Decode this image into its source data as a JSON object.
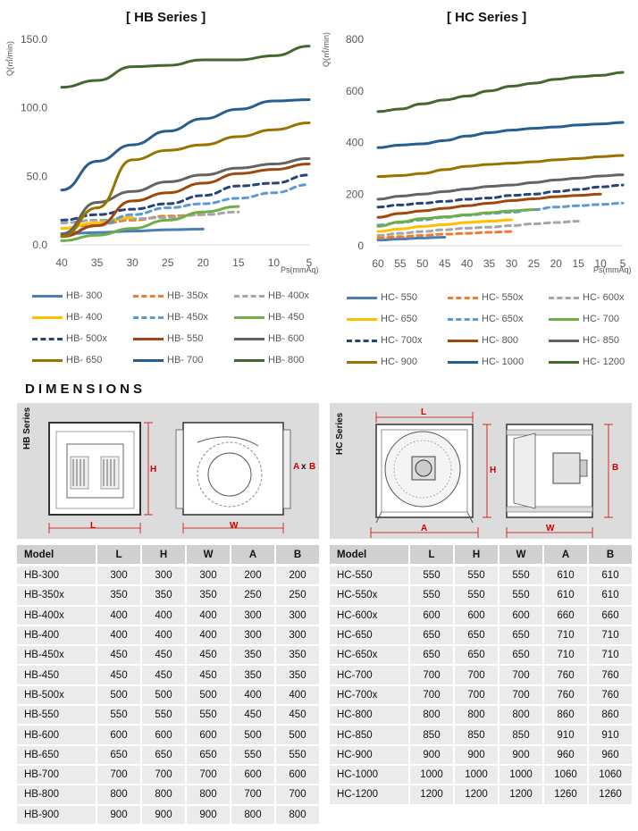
{
  "hb_chart": {
    "title": "[ HB Series ]",
    "ylabel": "Q(㎥/min)",
    "xlabel": "Ps(mmAq)",
    "y_ticks": [
      "0.0",
      "50.0",
      "100.0",
      "150.0"
    ],
    "x_ticks": [
      "40",
      "35",
      "30",
      "25",
      "20",
      "15",
      "10",
      "5"
    ]
  },
  "hc_chart": {
    "title": "[ HC Series ]",
    "ylabel": "Q(㎥/min)",
    "xlabel": "Ps(mmAq)",
    "y_ticks": [
      "0",
      "200",
      "400",
      "600",
      "800"
    ],
    "x_ticks": [
      "60",
      "55",
      "50",
      "45",
      "40",
      "35",
      "30",
      "25",
      "20",
      "15",
      "10",
      "5"
    ]
  },
  "chart_data": [
    {
      "type": "line",
      "title": "[ HB Series ]",
      "xlabel": "Ps(mmAq)",
      "ylabel": "Q(㎥/min)",
      "xlim": [
        40,
        5
      ],
      "ylim": [
        0,
        150
      ],
      "grid": false,
      "legend": "bottom",
      "series": [
        {
          "name": "HB- 300",
          "color": "#4a7ebb",
          "dash": false,
          "x": [
            20,
            25,
            30,
            35,
            40
          ],
          "y": [
            11.5,
            11,
            10,
            9,
            8
          ]
        },
        {
          "name": "HB- 350x",
          "color": "#ed7d31",
          "dash": true,
          "x": [
            20,
            25,
            30,
            35,
            40
          ],
          "y": [
            22,
            21,
            18,
            15,
            12
          ]
        },
        {
          "name": "HB- 400x",
          "color": "#a5a5a5",
          "dash": true,
          "x": [
            15,
            20,
            25,
            30,
            35,
            40
          ],
          "y": [
            24,
            22,
            20,
            19,
            18,
            16
          ]
        },
        {
          "name": "HB- 400",
          "color": "#ffc000",
          "dash": false,
          "x": [
            30,
            35,
            40
          ],
          "y": [
            20,
            16,
            12
          ]
        },
        {
          "name": "HB- 450x",
          "color": "#5b9bd5",
          "dash": true,
          "x": [
            5,
            10,
            15,
            20,
            25,
            30,
            35,
            40
          ],
          "y": [
            44,
            38,
            34,
            30,
            27,
            22,
            14,
            7
          ]
        },
        {
          "name": "HB- 450",
          "color": "#70ad47",
          "dash": false,
          "x": [
            15,
            20,
            25,
            30,
            35,
            40
          ],
          "y": [
            28,
            24,
            18,
            12,
            7,
            3
          ]
        },
        {
          "name": "HB- 500x",
          "color": "#264478",
          "dash": true,
          "x": [
            5,
            10,
            15,
            20,
            25,
            30,
            35,
            40
          ],
          "y": [
            51,
            45,
            43,
            36,
            30,
            26,
            22,
            18
          ]
        },
        {
          "name": "HB- 550",
          "color": "#9e480e",
          "dash": false,
          "x": [
            5,
            10,
            15,
            20,
            25,
            30,
            35,
            40
          ],
          "y": [
            59,
            55,
            52,
            45,
            38,
            32,
            14,
            6
          ]
        },
        {
          "name": "HB- 600",
          "color": "#636363",
          "dash": false,
          "x": [
            5,
            10,
            15,
            20,
            25,
            30,
            35,
            40
          ],
          "y": [
            63,
            59,
            56,
            51,
            46,
            39,
            31,
            8
          ]
        },
        {
          "name": "HB- 650",
          "color": "#997300",
          "dash": false,
          "x": [
            5,
            10,
            15,
            20,
            25,
            30,
            35,
            40
          ],
          "y": [
            89,
            84,
            79,
            73,
            69,
            62,
            27,
            6
          ]
        },
        {
          "name": "HB- 700",
          "color": "#255e91",
          "dash": false,
          "x": [
            5,
            10,
            15,
            20,
            25,
            30,
            35,
            40
          ],
          "y": [
            106,
            105,
            99,
            92,
            83,
            73,
            61,
            40
          ]
        },
        {
          "name": "HB- 800",
          "color": "#43682b",
          "dash": false,
          "x": [
            5,
            10,
            15,
            20,
            25,
            30,
            35,
            40
          ],
          "y": [
            145,
            138,
            135,
            135,
            131,
            130,
            120,
            115
          ]
        }
      ]
    },
    {
      "type": "line",
      "title": "[ HC Series ]",
      "xlabel": "Ps(mmAq)",
      "ylabel": "Q(㎥/min)",
      "xlim": [
        60,
        5
      ],
      "ylim": [
        0,
        800
      ],
      "grid": false,
      "legend": "bottom",
      "series": [
        {
          "name": "HC- 550",
          "color": "#4a7ebb",
          "dash": false,
          "x": [
            45,
            50,
            55,
            60
          ],
          "y": [
            33,
            30,
            26,
            22
          ]
        },
        {
          "name": "HC- 550x",
          "color": "#ed7d31",
          "dash": true,
          "x": [
            30,
            35,
            40,
            45,
            50,
            55,
            60
          ],
          "y": [
            55,
            52,
            48,
            45,
            40,
            35,
            30
          ]
        },
        {
          "name": "HC- 600x",
          "color": "#a5a5a5",
          "dash": true,
          "x": [
            15,
            20,
            25,
            30,
            35,
            40,
            45,
            50,
            55,
            60
          ],
          "y": [
            95,
            90,
            85,
            78,
            72,
            68,
            62,
            55,
            48,
            40
          ]
        },
        {
          "name": "HC- 650",
          "color": "#ffc000",
          "dash": false,
          "x": [
            30,
            35,
            40,
            45,
            50,
            55,
            60
          ],
          "y": [
            100,
            95,
            90,
            82,
            75,
            65,
            55
          ]
        },
        {
          "name": "HC- 650x",
          "color": "#5b9bd5",
          "dash": true,
          "x": [
            5,
            10,
            15,
            20,
            25,
            30,
            35,
            40,
            45,
            50,
            55,
            60
          ],
          "y": [
            165,
            160,
            155,
            150,
            140,
            130,
            125,
            118,
            110,
            100,
            90,
            80
          ]
        },
        {
          "name": "HC- 700",
          "color": "#70ad47",
          "dash": false,
          "x": [
            25,
            30,
            35,
            40,
            45,
            50,
            55,
            60
          ],
          "y": [
            140,
            135,
            128,
            120,
            112,
            105,
            92,
            75
          ]
        },
        {
          "name": "HC- 700x",
          "color": "#264478",
          "dash": true,
          "x": [
            5,
            10,
            15,
            20,
            25,
            30,
            35,
            40,
            45,
            50,
            55,
            60
          ],
          "y": [
            235,
            228,
            218,
            210,
            200,
            195,
            185,
            180,
            172,
            165,
            158,
            150
          ]
        },
        {
          "name": "HC- 800",
          "color": "#9e480e",
          "dash": false,
          "x": [
            10,
            15,
            20,
            25,
            30,
            35,
            40,
            45,
            50,
            55,
            60
          ],
          "y": [
            200,
            195,
            190,
            182,
            175,
            165,
            155,
            145,
            135,
            125,
            110
          ]
        },
        {
          "name": "HC- 850",
          "color": "#636363",
          "dash": false,
          "x": [
            5,
            10,
            15,
            20,
            25,
            30,
            35,
            40,
            45,
            50,
            55,
            60
          ],
          "y": [
            275,
            270,
            262,
            255,
            245,
            235,
            230,
            220,
            210,
            200,
            192,
            180
          ]
        },
        {
          "name": "HC- 900",
          "color": "#997300",
          "dash": false,
          "x": [
            5,
            10,
            15,
            20,
            25,
            30,
            35,
            40,
            45,
            50,
            55,
            60
          ],
          "y": [
            350,
            345,
            338,
            333,
            325,
            320,
            315,
            308,
            295,
            280,
            272,
            268
          ]
        },
        {
          "name": "HC- 1000",
          "color": "#255e91",
          "dash": false,
          "x": [
            5,
            10,
            15,
            20,
            25,
            30,
            35,
            40,
            45,
            50,
            55,
            60
          ],
          "y": [
            478,
            472,
            468,
            460,
            455,
            448,
            438,
            425,
            408,
            395,
            390,
            380
          ]
        },
        {
          "name": "HC- 1200",
          "color": "#43682b",
          "dash": false,
          "x": [
            5,
            10,
            15,
            20,
            25,
            30,
            35,
            40,
            45,
            50,
            55,
            60
          ],
          "y": [
            672,
            660,
            655,
            645,
            630,
            618,
            600,
            580,
            565,
            550,
            530,
            520
          ]
        }
      ]
    }
  ],
  "dimensions": {
    "title": "DIMENSIONS",
    "hb_panel": {
      "series_label": "HB Series",
      "dim_h": "H",
      "dim_l": "L",
      "dim_w": "W",
      "dim_a": "A",
      "dim_x": "x",
      "dim_b": "B"
    },
    "hc_panel": {
      "series_label": "HC Series",
      "dim_l": "L",
      "dim_h": "H",
      "dim_a": "A",
      "dim_w": "W",
      "dim_b": "B"
    }
  },
  "hb_table": {
    "headers": [
      "Model",
      "L",
      "H",
      "W",
      "A",
      "B"
    ],
    "rows": [
      [
        "HB-300",
        "300",
        "300",
        "300",
        "200",
        "200"
      ],
      [
        "HB-350x",
        "350",
        "350",
        "350",
        "250",
        "250"
      ],
      [
        "HB-400x",
        "400",
        "400",
        "400",
        "300",
        "300"
      ],
      [
        "HB-400",
        "400",
        "400",
        "400",
        "300",
        "300"
      ],
      [
        "HB-450x",
        "450",
        "450",
        "450",
        "350",
        "350"
      ],
      [
        "HB-450",
        "450",
        "450",
        "450",
        "350",
        "350"
      ],
      [
        "HB-500x",
        "500",
        "500",
        "500",
        "400",
        "400"
      ],
      [
        "HB-550",
        "550",
        "550",
        "550",
        "450",
        "450"
      ],
      [
        "HB-600",
        "600",
        "600",
        "600",
        "500",
        "500"
      ],
      [
        "HB-650",
        "650",
        "650",
        "650",
        "550",
        "550"
      ],
      [
        "HB-700",
        "700",
        "700",
        "700",
        "600",
        "600"
      ],
      [
        "HB-800",
        "800",
        "800",
        "800",
        "700",
        "700"
      ],
      [
        "HB-900",
        "900",
        "900",
        "900",
        "800",
        "800"
      ]
    ]
  },
  "hc_table": {
    "headers": [
      "Model",
      "L",
      "H",
      "W",
      "A",
      "B"
    ],
    "rows": [
      [
        "HC-550",
        "550",
        "550",
        "550",
        "610",
        "610"
      ],
      [
        "HC-550x",
        "550",
        "550",
        "550",
        "610",
        "610"
      ],
      [
        "HC-600x",
        "600",
        "600",
        "600",
        "660",
        "660"
      ],
      [
        "HC-650",
        "650",
        "650",
        "650",
        "710",
        "710"
      ],
      [
        "HC-650x",
        "650",
        "650",
        "650",
        "710",
        "710"
      ],
      [
        "HC-700",
        "700",
        "700",
        "700",
        "760",
        "760"
      ],
      [
        "HC-700x",
        "700",
        "700",
        "700",
        "760",
        "760"
      ],
      [
        "HC-800",
        "800",
        "800",
        "800",
        "860",
        "860"
      ],
      [
        "HC-850",
        "850",
        "850",
        "850",
        "910",
        "910"
      ],
      [
        "HC-900",
        "900",
        "900",
        "900",
        "960",
        "960"
      ],
      [
        "HC-1000",
        "1000",
        "1000",
        "1000",
        "1060",
        "1060"
      ],
      [
        "HC-1200",
        "1200",
        "1200",
        "1200",
        "1260",
        "1260"
      ]
    ]
  }
}
